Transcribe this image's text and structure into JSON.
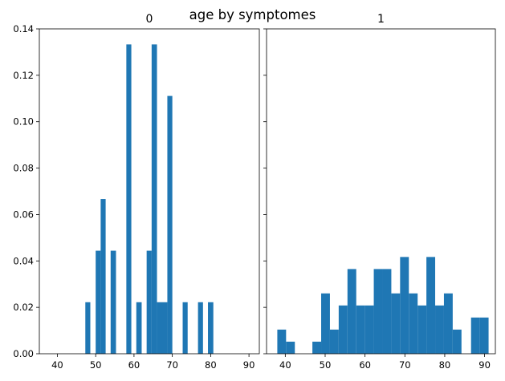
{
  "title": "age by symptomes",
  "colors": {
    "bar": "#1f77b4",
    "axis": "#000000",
    "background": "#ffffff"
  },
  "chart_data": [
    {
      "type": "bar",
      "title": "0",
      "xlabel": "",
      "ylabel": "",
      "xlim": [
        35.3,
        92.7
      ],
      "ylim": [
        0,
        0.14
      ],
      "xticks": [
        40,
        50,
        60,
        70,
        80,
        90
      ],
      "yticks": [
        0.0,
        0.02,
        0.04,
        0.06,
        0.08,
        0.1,
        0.12,
        0.14
      ],
      "ytick_labels": [
        "0.00",
        "0.02",
        "0.04",
        "0.06",
        "0.08",
        "0.10",
        "0.12",
        "0.14"
      ],
      "bins": [
        {
          "x0": 47.3,
          "x1": 48.6,
          "value": 0.0222
        },
        {
          "x0": 50.0,
          "x1": 51.3,
          "value": 0.0444
        },
        {
          "x0": 51.3,
          "x1": 52.6,
          "value": 0.0667
        },
        {
          "x0": 53.9,
          "x1": 55.3,
          "value": 0.0444
        },
        {
          "x0": 58.0,
          "x1": 59.3,
          "value": 0.1333
        },
        {
          "x0": 60.6,
          "x1": 62.0,
          "value": 0.0222
        },
        {
          "x0": 63.3,
          "x1": 64.6,
          "value": 0.0444
        },
        {
          "x0": 64.6,
          "x1": 66.0,
          "value": 0.1333
        },
        {
          "x0": 66.0,
          "x1": 68.7,
          "value": 0.0222
        },
        {
          "x0": 68.7,
          "x1": 70.0,
          "value": 0.1111
        },
        {
          "x0": 72.7,
          "x1": 74.0,
          "value": 0.0222
        },
        {
          "x0": 76.7,
          "x1": 78.0,
          "value": 0.0222
        },
        {
          "x0": 79.3,
          "x1": 80.7,
          "value": 0.0222
        }
      ]
    },
    {
      "type": "bar",
      "title": "1",
      "xlabel": "",
      "ylabel": "",
      "xlim": [
        35.3,
        92.7
      ],
      "ylim": [
        0,
        0.14
      ],
      "xticks": [
        40,
        50,
        60,
        70,
        80,
        90
      ],
      "yticks": [
        0.0,
        0.02,
        0.04,
        0.06,
        0.08,
        0.1,
        0.12,
        0.14
      ],
      "ytick_labels": [
        "",
        "",
        "",
        "",
        "",
        "",
        "",
        ""
      ],
      "bins": [
        {
          "x0": 38.0,
          "x1": 40.2,
          "value": 0.0104
        },
        {
          "x0": 40.2,
          "x1": 42.4,
          "value": 0.0052
        },
        {
          "x0": 46.8,
          "x1": 49.0,
          "value": 0.0052
        },
        {
          "x0": 49.0,
          "x1": 51.2,
          "value": 0.026
        },
        {
          "x0": 51.2,
          "x1": 53.4,
          "value": 0.0104
        },
        {
          "x0": 53.4,
          "x1": 55.6,
          "value": 0.0208
        },
        {
          "x0": 55.6,
          "x1": 57.8,
          "value": 0.0365
        },
        {
          "x0": 57.8,
          "x1": 60.0,
          "value": 0.0208
        },
        {
          "x0": 60.0,
          "x1": 62.2,
          "value": 0.0208
        },
        {
          "x0": 62.2,
          "x1": 64.4,
          "value": 0.0365
        },
        {
          "x0": 64.4,
          "x1": 66.6,
          "value": 0.0365
        },
        {
          "x0": 66.6,
          "x1": 68.8,
          "value": 0.026
        },
        {
          "x0": 68.8,
          "x1": 71.0,
          "value": 0.0417
        },
        {
          "x0": 71.0,
          "x1": 73.2,
          "value": 0.026
        },
        {
          "x0": 73.2,
          "x1": 75.4,
          "value": 0.0208
        },
        {
          "x0": 75.4,
          "x1": 77.6,
          "value": 0.0417
        },
        {
          "x0": 77.6,
          "x1": 79.8,
          "value": 0.0208
        },
        {
          "x0": 79.8,
          "x1": 82.0,
          "value": 0.026
        },
        {
          "x0": 82.0,
          "x1": 84.2,
          "value": 0.0104
        },
        {
          "x0": 86.6,
          "x1": 88.8,
          "value": 0.0156
        },
        {
          "x0": 88.8,
          "x1": 91.0,
          "value": 0.0156
        }
      ]
    }
  ]
}
